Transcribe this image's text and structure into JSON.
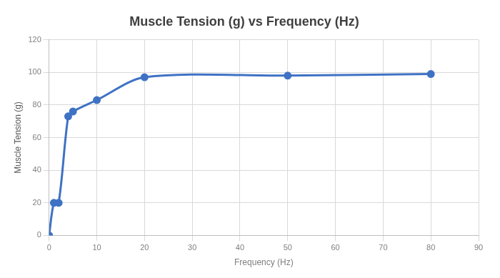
{
  "chart_data": {
    "type": "line",
    "title": "Muscle Tension (g) vs Frequency (Hz)",
    "x_label": "Frequency (Hz)",
    "y_label": "Muscle Tension (g)",
    "x": [
      0,
      1,
      2,
      4,
      5,
      10,
      20,
      50,
      80
    ],
    "values": [
      0,
      20,
      20,
      73,
      76,
      83,
      97,
      98,
      99
    ],
    "color": "#3f72c4",
    "marker": "circle",
    "xlim": [
      0,
      90
    ],
    "xticks": [
      0,
      10,
      20,
      30,
      40,
      50,
      60,
      70,
      80,
      90
    ],
    "ylim": [
      0,
      120
    ],
    "yticks": [
      0,
      20,
      40,
      60,
      80,
      100,
      120
    ],
    "grid": true
  }
}
